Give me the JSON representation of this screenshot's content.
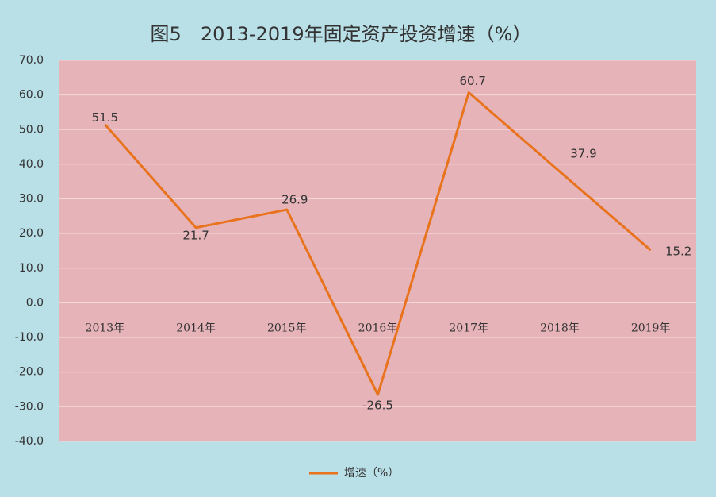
{
  "chart_data": {
    "type": "line",
    "title": "图5　2013-2019年固定资产投资增速（%）",
    "categories": [
      "2013年",
      "2014年",
      "2015年",
      "2016年",
      "2017年",
      "2018年",
      "2019年"
    ],
    "series": [
      {
        "name": "增速（%）",
        "color": "#e8731c",
        "values": [
          51.5,
          21.7,
          26.9,
          -26.5,
          60.7,
          37.9,
          15.2
        ]
      }
    ],
    "ylim": [
      -40,
      70
    ],
    "yticks": [
      {
        "value": -40,
        "label": "-40.0"
      },
      {
        "value": -30,
        "label": "-30.0"
      },
      {
        "value": -20,
        "label": "-20.0"
      },
      {
        "value": -10,
        "label": "-10.0"
      },
      {
        "value": 0,
        "label": "0.0"
      },
      {
        "value": 10,
        "label": "10.0"
      },
      {
        "value": 20,
        "label": "20.0"
      },
      {
        "value": 30,
        "label": "30.0"
      },
      {
        "value": 40,
        "label": "40.0"
      },
      {
        "value": 50,
        "label": "50.0"
      },
      {
        "value": 60,
        "label": "60.0"
      },
      {
        "value": 70,
        "label": "70.0"
      }
    ],
    "grid": true,
    "legend": "bottom"
  }
}
